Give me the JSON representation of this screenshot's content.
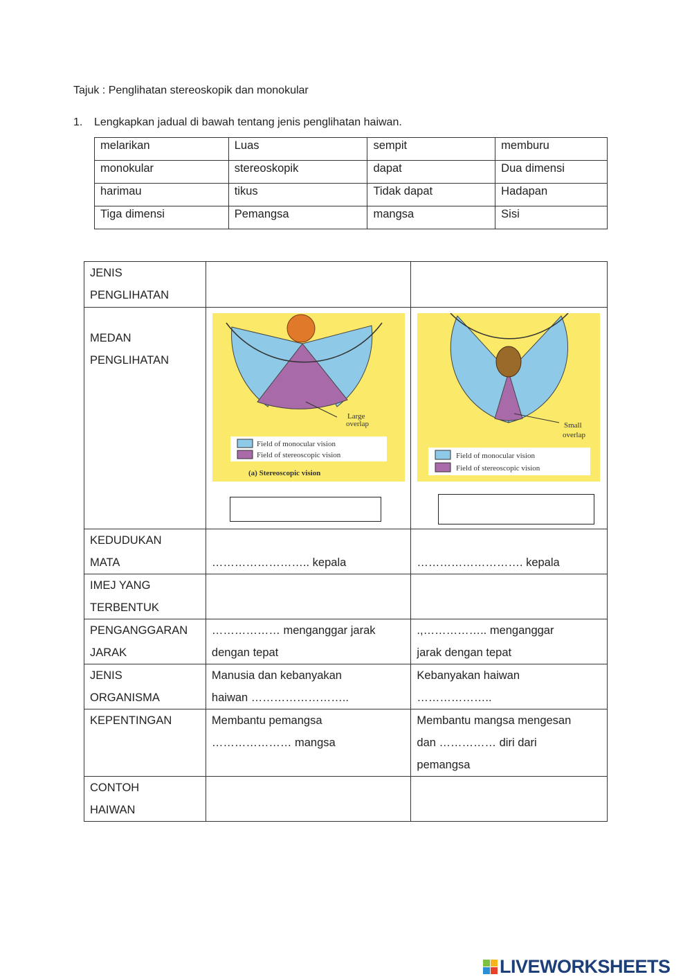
{
  "title": "Tajuk : Penglihatan stereoskopik dan monokular",
  "q1": {
    "num": "1.",
    "text": "Lengkapkan jadual di bawah tentang jenis penglihatan haiwan."
  },
  "word_bank": [
    [
      "melarikan",
      "Luas",
      "sempit",
      "memburu"
    ],
    [
      "monokular",
      "stereoskopik",
      "dapat",
      "Dua dimensi"
    ],
    [
      "harimau",
      "tikus",
      "Tidak dapat",
      "Hadapan"
    ],
    [
      "Tiga dimensi",
      "Pemangsa",
      "mangsa",
      "Sisi"
    ]
  ],
  "rows": {
    "jenis": {
      "h1": "JENIS",
      "h2": "PENGLIHATAN"
    },
    "medan": {
      "h1": "MEDAN",
      "h2": "PENGLIHATAN"
    },
    "kedudukan": {
      "h1": "KEDUDUKAN",
      "h2": "MATA",
      "a": "…………………….. kepala",
      "b": "……………………….  kepala"
    },
    "imej": {
      "h1": "IMEJ YANG",
      "h2": "TERBENTUK"
    },
    "anggar": {
      "h1": "PENGANGGARAN",
      "h2": "JARAK",
      "a1": "……………… menganggar jarak",
      "a2": "dengan tepat",
      "b1": ".,…………….. menganggar",
      "b2": "jarak dengan tepat"
    },
    "organisma": {
      "h1": "JENIS",
      "h2": "ORGANISMA",
      "a1": "Manusia  dan  kebanyakan",
      "a2": "haiwan  ……………………..",
      "b1": "Kebanyakan haiwan",
      "b2": "……………….."
    },
    "penting": {
      "h1": "KEPENTINGAN",
      "a1": "Membantu pemangsa",
      "a2": "………………… mangsa",
      "b1": "Membantu mangsa mengesan",
      "b2": "dan …………… diri dari",
      "b3": "pemangsa"
    },
    "contoh": {
      "h1": "CONTOH",
      "h2": "HAIWAN"
    }
  },
  "diagram_a": {
    "overlap": [
      "Large",
      "overlap"
    ],
    "legend": [
      "Field of monocular vision",
      "Field of stereoscopic vision"
    ],
    "caption": "(a)  Stereoscopic vision"
  },
  "diagram_b": {
    "overlap": [
      "Small",
      "overlap"
    ],
    "legend": [
      "Field of monocular vision",
      "Field of stereoscopic vision"
    ]
  },
  "colors": {
    "background": "#fbe96a",
    "monocular": "#8ecae8",
    "stereoscopic": "#a86aa8"
  },
  "logo": "LIVEWORKSHEETS"
}
